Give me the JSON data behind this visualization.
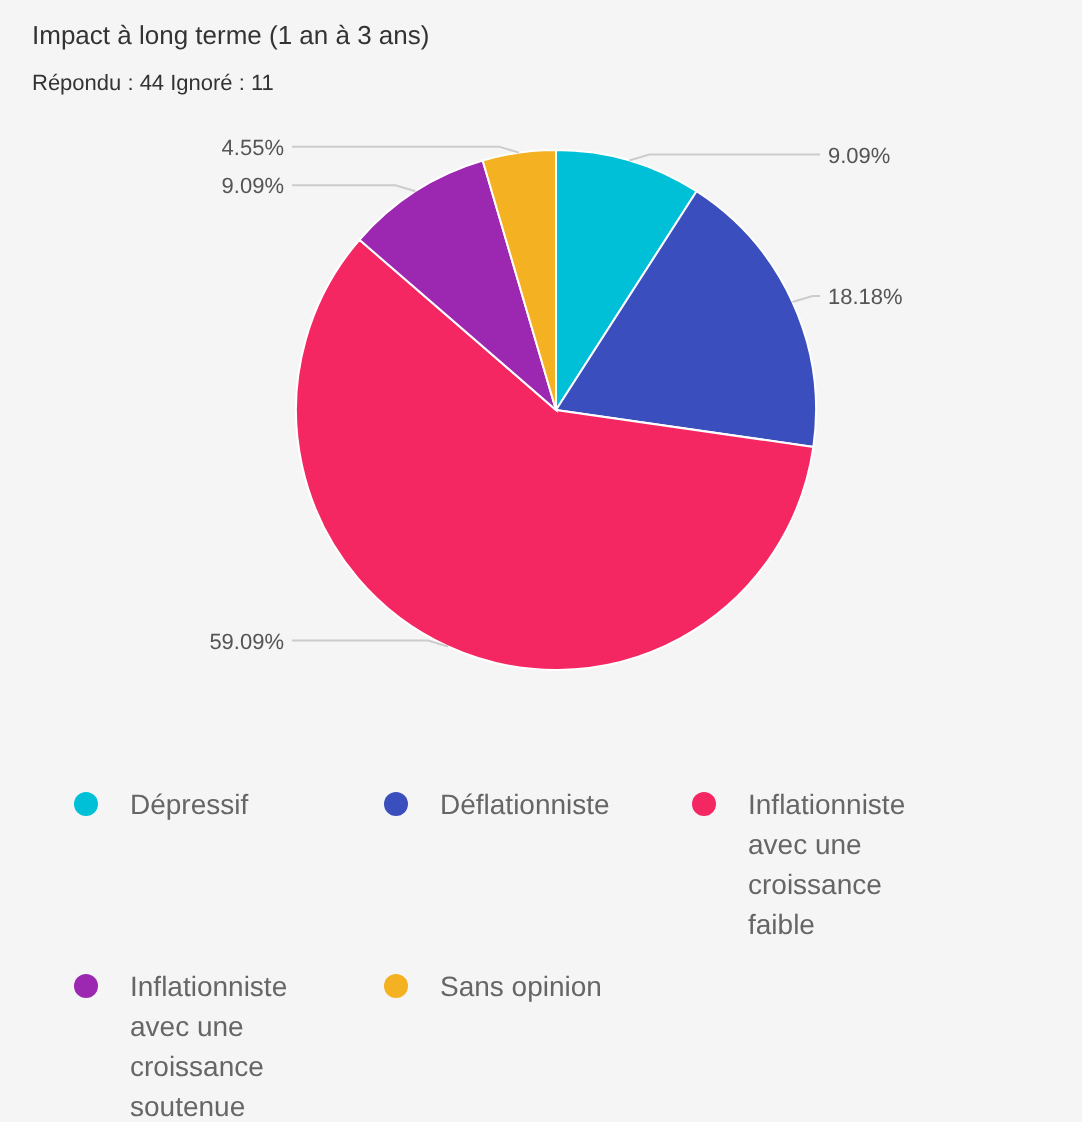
{
  "chart_data": {
    "type": "pie",
    "title": "Impact à long terme (1 an à 3 ans)",
    "subtitle": "Répondu : 44 Ignoré : 11",
    "categories": [
      "Dépressif",
      "Déflationniste",
      "Inflationniste avec une croissance faible",
      "Inflationniste avec une croissance soutenue",
      "Sans opinion"
    ],
    "values": [
      9.09,
      18.18,
      59.09,
      9.09,
      4.55
    ],
    "colors": [
      "#00c0d8",
      "#3a4fbd",
      "#f42763",
      "#9c27b0",
      "#f4b122"
    ],
    "value_labels": [
      "9.09%",
      "18.18%",
      "59.09%",
      "9.09%",
      "4.55%"
    ],
    "legend": "bottom"
  }
}
